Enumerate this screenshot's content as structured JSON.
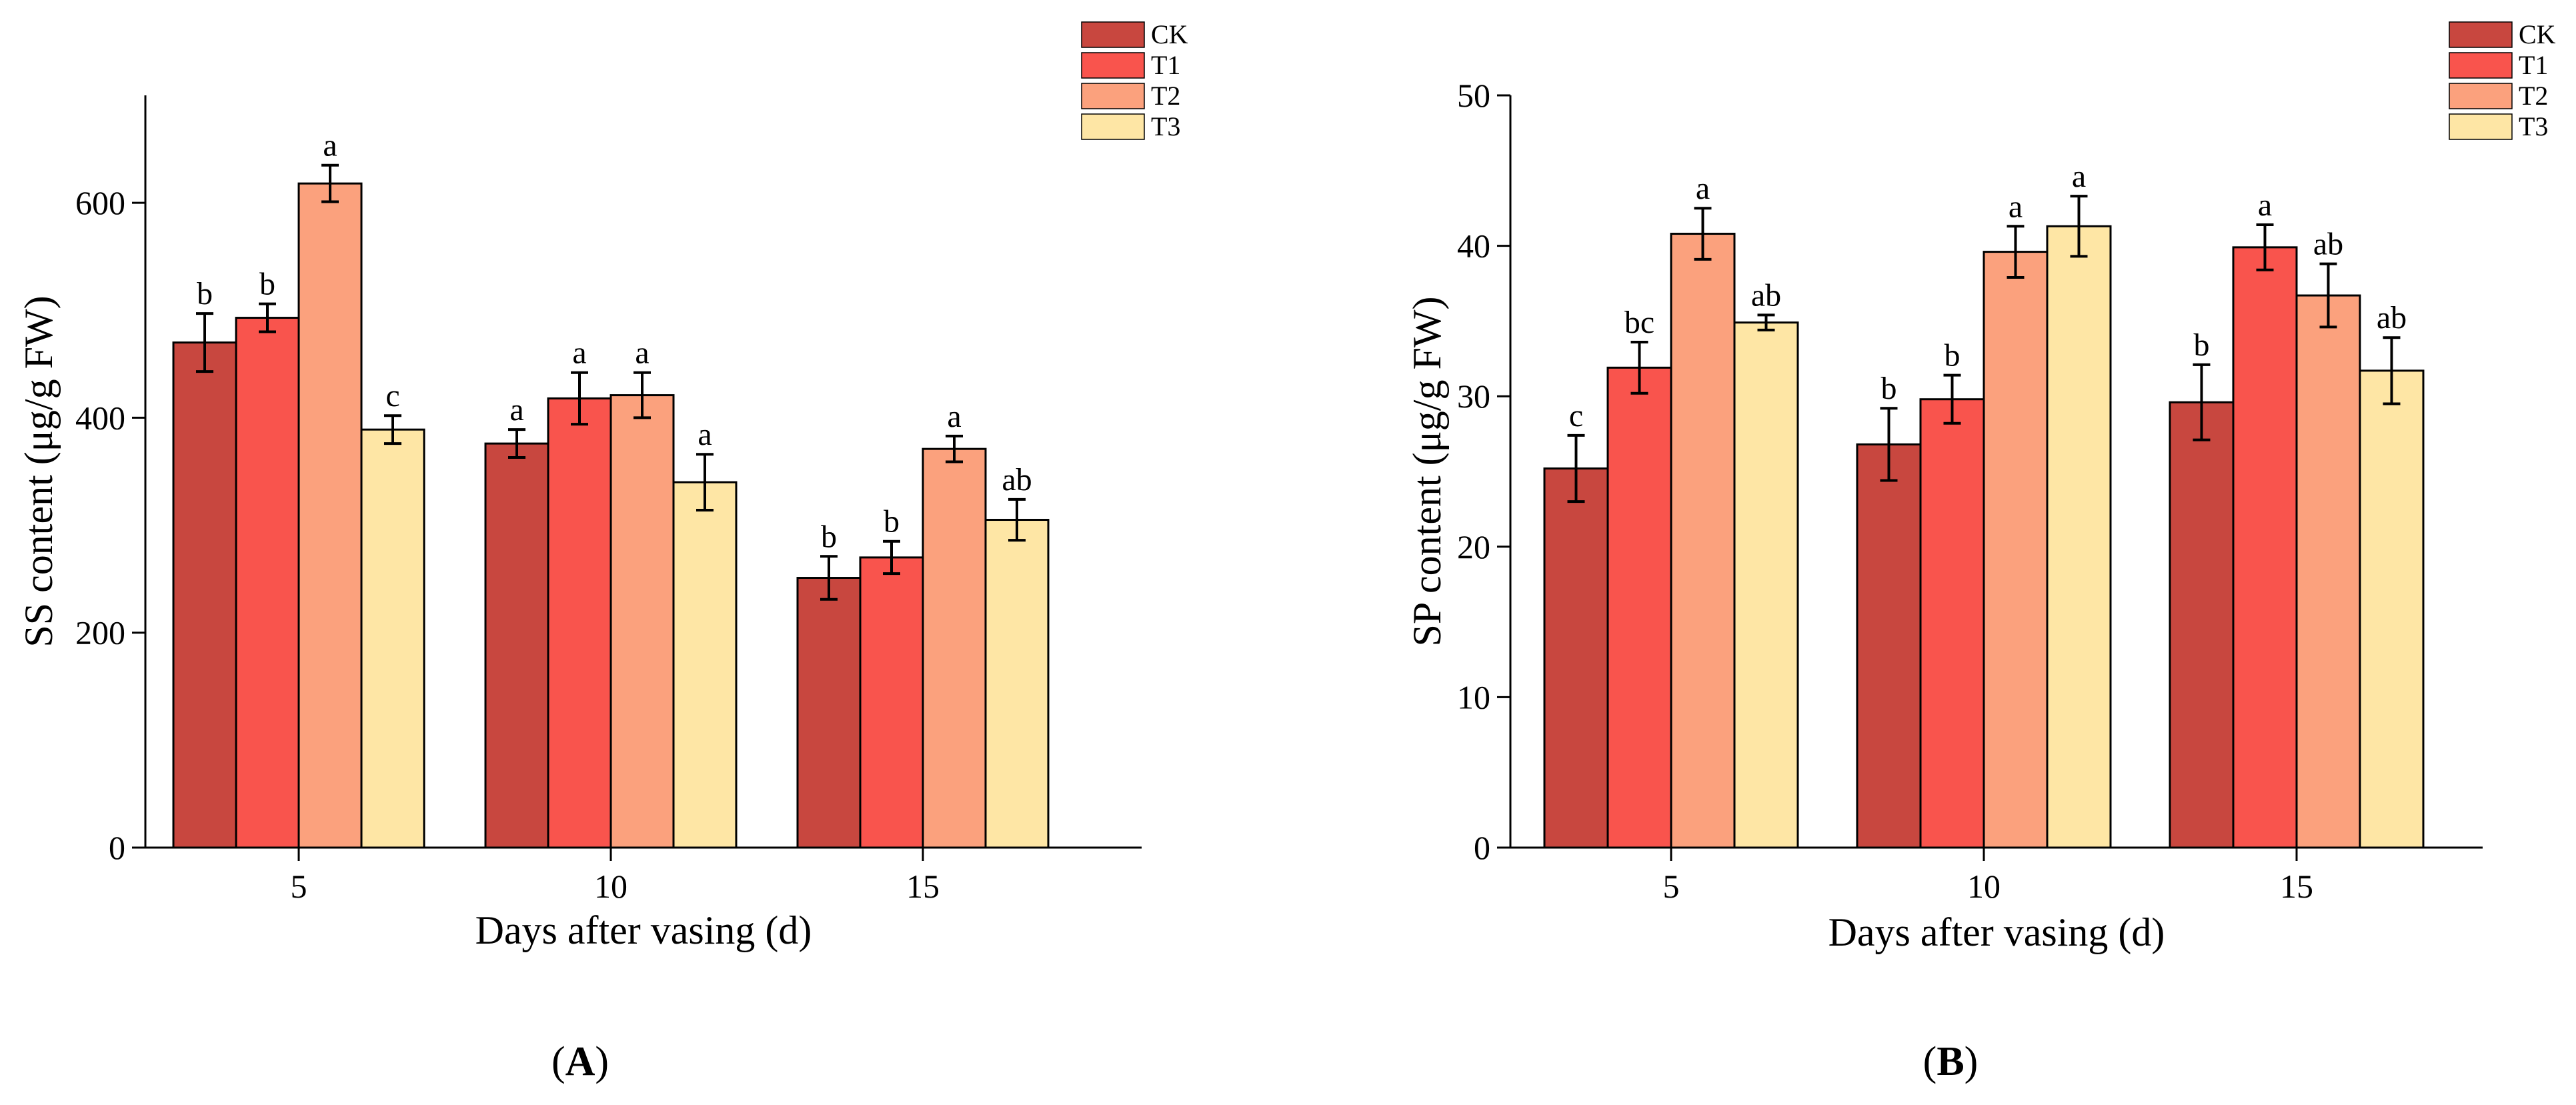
{
  "chart_data": [
    {
      "type": "bar",
      "panel_label": {
        "open": "(",
        "letter": "A",
        "close": ")"
      },
      "title": "",
      "xlabel": "Days after vasing (d)",
      "ylabel": "SS content (μg/g FW)",
      "categories": [
        "5",
        "10",
        "15"
      ],
      "ylim": [
        0,
        700
      ],
      "yticks": [
        0,
        200,
        400,
        600
      ],
      "legend_position": "top-right",
      "series": [
        {
          "name": "CK",
          "color": "#c8473f",
          "values": [
            470,
            376,
            251
          ],
          "errors": [
            27,
            13,
            20
          ],
          "letters": [
            "b",
            "a",
            "b"
          ]
        },
        {
          "name": "T1",
          "color": "#f9544d",
          "values": [
            493,
            418,
            270
          ],
          "errors": [
            13,
            24,
            15
          ],
          "letters": [
            "b",
            "a",
            "b"
          ]
        },
        {
          "name": "T2",
          "color": "#fba17d",
          "values": [
            618,
            421,
            371
          ],
          "errors": [
            17,
            21,
            12
          ],
          "letters": [
            "a",
            "a",
            "a"
          ]
        },
        {
          "name": "T3",
          "color": "#fee6a5",
          "values": [
            389,
            340,
            305
          ],
          "errors": [
            13,
            26,
            19
          ],
          "letters": [
            "c",
            "a",
            "ab"
          ]
        }
      ]
    },
    {
      "type": "bar",
      "panel_label": {
        "open": "(",
        "letter": "B",
        "close": ")"
      },
      "title": "",
      "xlabel": "Days after vasing (d)",
      "ylabel": "SP content (μg/g FW)",
      "categories": [
        "5",
        "10",
        "15"
      ],
      "ylim": [
        0,
        50
      ],
      "yticks": [
        0,
        10,
        20,
        30,
        40,
        50
      ],
      "legend_position": "top-right",
      "series": [
        {
          "name": "CK",
          "color": "#c8473f",
          "values": [
            25.2,
            26.8,
            29.6
          ],
          "errors": [
            2.2,
            2.4,
            2.5
          ],
          "letters": [
            "c",
            "b",
            "b"
          ]
        },
        {
          "name": "T1",
          "color": "#f9544d",
          "values": [
            31.9,
            29.8,
            39.9
          ],
          "errors": [
            1.7,
            1.6,
            1.5
          ],
          "letters": [
            "bc",
            "b",
            "a"
          ]
        },
        {
          "name": "T2",
          "color": "#fba17d",
          "values": [
            40.8,
            39.6,
            36.7
          ],
          "errors": [
            1.7,
            1.7,
            2.1
          ],
          "letters": [
            "a",
            "a",
            "ab"
          ]
        },
        {
          "name": "T3",
          "color": "#fee6a5",
          "values": [
            34.9,
            41.3,
            31.7
          ],
          "errors": [
            0.5,
            2.0,
            2.2
          ],
          "letters": [
            "ab",
            "a",
            "ab"
          ]
        }
      ]
    }
  ]
}
